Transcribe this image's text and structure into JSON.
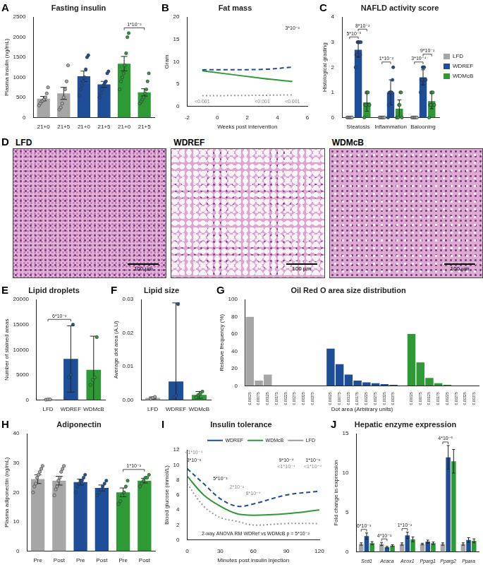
{
  "chart_data": [
    {
      "panel": "A",
      "type": "bar",
      "title": "Fasting insulin",
      "y_label": "Plasma insulin (ng/mL)",
      "categories": [
        "21+0",
        "21+5",
        "21+0",
        "21+5",
        "21+0",
        "21+5"
      ],
      "values": [
        470,
        600,
        1025,
        825,
        1340,
        625
      ],
      "errors": [
        55,
        150,
        130,
        75,
        180,
        90
      ],
      "points": [
        [
          300,
          350,
          400,
          420,
          450,
          500,
          600,
          750
        ],
        [
          200,
          250,
          350,
          500,
          700,
          900,
          1300
        ],
        [
          550,
          700,
          800,
          900,
          1000,
          1200,
          1500,
          1550
        ],
        [
          500,
          600,
          700,
          800,
          850,
          900,
          1100,
          1150
        ],
        [
          700,
          900,
          1000,
          1100,
          1300,
          1600,
          2000,
          2100
        ],
        [
          350,
          400,
          450,
          500,
          600,
          700,
          900,
          1100
        ]
      ],
      "colors": [
        "#a6a6a6",
        "#a6a6a6",
        "#1f4e99",
        "#1f4e99",
        "#2e9a36",
        "#2e9a36"
      ],
      "ylim": [
        0,
        2500
      ],
      "yticks": [
        0,
        500,
        1000,
        1500,
        2000,
        2500
      ],
      "grid": false,
      "annotations": [
        {
          "pair": [
            4,
            5
          ],
          "text": "1*10⁻²"
        }
      ]
    },
    {
      "panel": "B",
      "type": "line",
      "title": "Fat mass",
      "y_label": "Gram",
      "x_label": "Weeks post intervention",
      "x": [
        -1,
        3,
        5
      ],
      "series": [
        {
          "name": "WDREF",
          "color": "#1f4e99",
          "line_style": "dashed",
          "values": [
            8.2,
            8.3,
            8.8
          ]
        },
        {
          "name": "WDMcB",
          "color": "#2e9a36",
          "line_style": "solid",
          "values": [
            8.0,
            6.3,
            5.6
          ]
        },
        {
          "name": "LFD",
          "color": "#9a9a9a",
          "line_style": "dotted",
          "values": [
            2.4,
            2.5,
            2.6
          ]
        }
      ],
      "xlim": [
        -2,
        6
      ],
      "xticks": [
        -2,
        0,
        2,
        4,
        6
      ],
      "ylim": [
        0,
        20
      ],
      "yticks": [
        0,
        5,
        10,
        15,
        20
      ],
      "grid": false,
      "annotations": [
        {
          "x": 5,
          "y": 17.5,
          "text": "3*10⁻²",
          "color": "#222222"
        },
        {
          "x": -1,
          "y": 1,
          "text": "<0.001",
          "color": "#888888"
        },
        {
          "x": 3,
          "y": 1,
          "text": "<0.001",
          "color": "#888888"
        },
        {
          "x": 5,
          "y": 1,
          "text": "<0.001",
          "color": "#888888"
        }
      ]
    },
    {
      "panel": "C",
      "type": "bar",
      "title": "NAFLD activity score",
      "y_label": "Histological grading",
      "categories": [
        "Steatosis",
        "Inflammation",
        "Balooning"
      ],
      "series": [
        {
          "name": "LFD",
          "color": "#a6a6a6",
          "values": [
            0,
            0,
            0
          ],
          "errors": [
            0,
            0,
            0
          ],
          "points": [
            [
              0,
              0,
              0,
              0,
              0,
              0
            ],
            [
              0,
              0,
              0,
              0,
              0,
              0
            ],
            [
              0,
              0,
              0,
              0,
              0,
              0
            ]
          ]
        },
        {
          "name": "WDREF",
          "color": "#1f4e99",
          "values": [
            2.7,
            1.0,
            1.6
          ],
          "errors": [
            0.3,
            0.5,
            0.3
          ],
          "points": [
            [
              2,
              2.5,
              2.5,
              3,
              3,
              3,
              3,
              2.5,
              3
            ],
            [
              0,
              0.5,
              1,
              1,
              1,
              1,
              1.5,
              2
            ],
            [
              1,
              1.5,
              1.5,
              2,
              2,
              2,
              1.5,
              1.5
            ]
          ]
        },
        {
          "name": "WDMcB",
          "color": "#2e9a36",
          "values": [
            0.6,
            0.35,
            0.65
          ],
          "errors": [
            0.35,
            0.35,
            0.3
          ],
          "points": [
            [
              0,
              0.5,
              0.5,
              1,
              1,
              1,
              0.5,
              0.5
            ],
            [
              0,
              0,
              0,
              0.5,
              0.5,
              1,
              1,
              0
            ],
            [
              0,
              0.5,
              0.5,
              1,
              1,
              1,
              0.5,
              0.5
            ]
          ]
        }
      ],
      "ylim": [
        0,
        4
      ],
      "yticks": [
        0,
        1,
        2,
        3,
        4
      ],
      "grid": false,
      "legend": "right",
      "annotations": [
        {
          "category": 0,
          "series": [
            0,
            1
          ],
          "text": "5*10⁻⁵"
        },
        {
          "category": 0,
          "series": [
            1,
            2
          ],
          "text": "8*10⁻²"
        },
        {
          "category": 1,
          "series": [
            0,
            1
          ],
          "text": "1*10⁻²"
        },
        {
          "category": 2,
          "series": [
            0,
            1
          ],
          "text": "3*10⁻⁴"
        },
        {
          "category": 2,
          "series": [
            1,
            2
          ],
          "text": "9*10⁻²"
        }
      ]
    },
    {
      "panel": "D",
      "type": "image",
      "labels": [
        "LFD",
        "WDREF",
        "WDMcB"
      ],
      "scale_bar": "100 µm"
    },
    {
      "panel": "E",
      "type": "bar",
      "title": "Lipid droplets",
      "y_label": "Number of stained areas",
      "categories": [
        "LFD",
        "WDREF",
        "WDMcB"
      ],
      "values": [
        83,
        8170,
        6000
      ],
      "errors": [
        50,
        6600,
        6700
      ],
      "points": [
        [
          50,
          100,
          100
        ],
        [
          4500,
          5000,
          15000
        ],
        [
          3000,
          4000,
          4500,
          12500
        ]
      ],
      "colors": [
        "#a6a6a6",
        "#1f4e99",
        "#2e9a36"
      ],
      "ylim": [
        0,
        20000
      ],
      "yticks": [
        0,
        5000,
        10000,
        15000,
        20000
      ],
      "grid": false,
      "annotations": [
        {
          "pair": [
            0,
            1
          ],
          "text": "6*10⁻²"
        }
      ]
    },
    {
      "panel": "F",
      "type": "bar",
      "title": "Lipid size",
      "y_label": "Average dot area (A.U)",
      "categories": [
        "LFD",
        "WDREF",
        "WDMcB"
      ],
      "values": [
        0.0006,
        0.0055,
        0.0015
      ],
      "errors": [
        0.0003,
        0.0235,
        0.001
      ],
      "points": [
        [
          0.0003,
          0.0006,
          0.0009
        ],
        [
          0.0008,
          0.0012,
          0.0286
        ],
        [
          0.0008,
          0.0015,
          0.0018,
          0.0025
        ]
      ],
      "colors": [
        "#a6a6a6",
        "#1f4e99",
        "#2e9a36"
      ],
      "ylim": [
        0,
        0.03
      ],
      "yticks": [
        {
          "value": 0,
          "label": "0.00"
        },
        0.01,
        0.02,
        0.03
      ],
      "grid": false
    },
    {
      "panel": "G",
      "type": "bar",
      "title": "Oil Red O area size distribution",
      "y_label": "Relative frequency (%)",
      "x_label": "Dot area (Arbitrary units)",
      "categories": [
        "0.00025",
        "0.00075",
        "0.00125",
        "0.00175",
        "0.00225",
        "0.00275",
        "0.00325",
        "0.00375",
        null,
        "0.00025",
        "0.00075",
        "0.00125",
        "0.00175",
        "0.00225",
        "0.00275",
        "0.00325",
        "0.00375",
        null,
        "0.00025",
        "0.00075",
        "0.00125",
        "0.00175",
        "0.00225",
        "0.00275",
        "0.00325",
        "0.00375"
      ],
      "values": [
        80,
        6,
        13,
        0,
        0,
        0,
        0,
        0,
        null,
        43,
        25,
        13,
        6,
        4,
        3,
        2,
        1,
        null,
        60,
        27,
        9,
        3,
        1,
        0,
        0,
        0
      ],
      "colors": [
        "#a6a6a6",
        "#a6a6a6",
        "#a6a6a6",
        "#a6a6a6",
        "#a6a6a6",
        "#a6a6a6",
        "#a6a6a6",
        "#a6a6a6",
        null,
        "#1f4e99",
        "#1f4e99",
        "#1f4e99",
        "#1f4e99",
        "#1f4e99",
        "#1f4e99",
        "#1f4e99",
        "#1f4e99",
        null,
        "#2e9a36",
        "#2e9a36",
        "#2e9a36",
        "#2e9a36",
        "#2e9a36",
        "#2e9a36",
        "#2e9a36",
        "#2e9a36"
      ],
      "ylim": [
        0,
        100
      ],
      "yticks": [
        0,
        20,
        40,
        60,
        80,
        100
      ],
      "grid": false
    },
    {
      "panel": "H",
      "type": "bar",
      "title": "Adiponectin",
      "y_label": "Plasma adiponectin (ng/mL)",
      "categories": [
        "Pre",
        "Post",
        "Pre",
        "Post",
        "Pre",
        "Post"
      ],
      "values": [
        24.5,
        24,
        23.5,
        21.5,
        20,
        24
      ],
      "errors": [
        1.5,
        1.5,
        1,
        1,
        1.5,
        0.8
      ],
      "points": [
        [
          20,
          22,
          23,
          25,
          26,
          27,
          28,
          29
        ],
        [
          19,
          21,
          22,
          24,
          25,
          27,
          28,
          29
        ],
        [
          20,
          22,
          23,
          24,
          24,
          25,
          26
        ],
        [
          19,
          20,
          21,
          22,
          23,
          24
        ],
        [
          16,
          17,
          19,
          20,
          22,
          24
        ],
        [
          22,
          23,
          24,
          25,
          25,
          26
        ]
      ],
      "colors": [
        "#a6a6a6",
        "#a6a6a6",
        "#1f4e99",
        "#1f4e99",
        "#2e9a36",
        "#2e9a36"
      ],
      "ylim": [
        0,
        40
      ],
      "yticks": [
        0,
        10,
        20,
        30,
        40
      ],
      "grid": false,
      "annotations": [
        {
          "pair": [
            4,
            5
          ],
          "text": "1*10⁻²"
        }
      ]
    },
    {
      "panel": "I",
      "type": "line",
      "title": "Insulin tolerance",
      "y_label": "Blood glucose (mmol/L)",
      "x_label": "Minutes post insulin injection",
      "x": [
        0,
        15,
        30,
        45,
        60,
        90,
        120
      ],
      "series": [
        {
          "name": "WDREF",
          "color": "#1f4e99",
          "line_style": "dashed",
          "values": [
            9.5,
            7.5,
            5.5,
            4.5,
            4.8,
            6.0,
            6.5
          ]
        },
        {
          "name": "WDMcB",
          "color": "#2e9a36",
          "line_style": "solid",
          "values": [
            8.5,
            6.0,
            4.5,
            3.5,
            3.3,
            3.5,
            4.0
          ]
        },
        {
          "name": "LFD",
          "color": "#9a9a9a",
          "line_style": "dotted",
          "values": [
            7.5,
            4.5,
            3.0,
            2.5,
            2.0,
            2.2,
            2.2
          ]
        }
      ],
      "xlim": [
        0,
        120
      ],
      "xticks": [
        0,
        30,
        60,
        90,
        120
      ],
      "ylim": [
        0,
        12
      ],
      "yticks": [
        0,
        2,
        4,
        6,
        8,
        10,
        12
      ],
      "grid": false,
      "legend": "top right",
      "annotations": [
        {
          "x": 6,
          "y": 11.6,
          "text": "<1*10⁻⁴",
          "color": "#888888"
        },
        {
          "x": 6,
          "y": 10.6,
          "text": "3*10⁻³",
          "color": "#222222"
        },
        {
          "x": 30,
          "y": 8.2,
          "text": "5*10⁻³",
          "color": "#222222"
        },
        {
          "x": 45,
          "y": 7.0,
          "text": "2*10⁻²",
          "color": "#888888"
        },
        {
          "x": 60,
          "y": 6.2,
          "text": "8*10⁻⁴",
          "color": "#888888"
        },
        {
          "x": 90,
          "y": 10.6,
          "text": "9*10⁻⁴",
          "color": "#222222"
        },
        {
          "x": 90,
          "y": 9.8,
          "text": "<1*10⁻⁴",
          "color": "#888888"
        },
        {
          "x": 114,
          "y": 10.6,
          "text": "1*10⁻³",
          "color": "#222222"
        },
        {
          "x": 114,
          "y": 9.8,
          "text": "<1*10⁻⁴",
          "color": "#888888"
        },
        {
          "x": 62,
          "y": 0.8,
          "text": "2-way ANOVA RM WDRef vs WDMcB p = 5*10⁻²",
          "color": "#222222"
        }
      ]
    },
    {
      "panel": "J",
      "type": "bar",
      "title": "Hepatic enzyme expression",
      "y_label": "Fold change in expression",
      "categories": [
        "Scd1",
        "Acaca",
        "Acox1",
        "Pparg1",
        "Pparg2",
        "Ppara"
      ],
      "series": [
        {
          "name": "LFD",
          "color": "#a6a6a6",
          "values": [
            1,
            1,
            1,
            1,
            1,
            1
          ],
          "errors": [
            0.15,
            0.2,
            0.15,
            0.1,
            0.15,
            0.15
          ]
        },
        {
          "name": "WDREF",
          "color": "#1f4e99",
          "values": [
            2.0,
            0.6,
            2.1,
            1.3,
            12,
            1.5
          ],
          "errors": [
            0.4,
            0.1,
            0.4,
            0.2,
            1.5,
            0.3
          ]
        },
        {
          "name": "WDMcB",
          "color": "#2e9a36",
          "values": [
            1.1,
            0.8,
            1.6,
            1.1,
            11.5,
            1.4
          ],
          "errors": [
            0.2,
            0.1,
            0.3,
            0.15,
            1.5,
            0.25
          ]
        }
      ],
      "ylim": [
        0,
        15
      ],
      "yticks": [
        0,
        5,
        10,
        15
      ],
      "grid": false,
      "annotations": [
        {
          "category": 0,
          "series": [
            0,
            1
          ],
          "text": "6*10⁻³"
        },
        {
          "category": 1,
          "series": [
            0,
            1
          ],
          "text": "4*10⁻²"
        },
        {
          "category": 2,
          "series": [
            0,
            1
          ],
          "text": "1*10⁻²"
        },
        {
          "category": 4,
          "series": [
            0,
            1
          ],
          "text": "4*10⁻⁵"
        }
      ]
    }
  ]
}
